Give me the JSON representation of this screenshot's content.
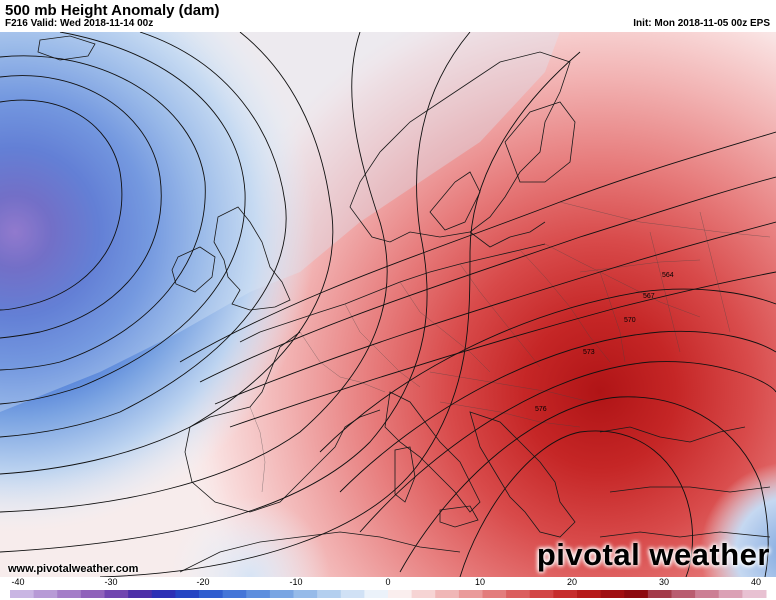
{
  "header": {
    "title": "500 mb Height Anomaly (dam)",
    "valid": "F216 Valid: Wed 2018-11-14 00z",
    "init": "Init: Mon 2018-11-05 00z EPS"
  },
  "footer": {
    "website": "www.pivotalweather.com",
    "brand": "pivotal weather"
  },
  "colorbar": {
    "ticks": [
      "-40",
      "-30",
      "-20",
      "-10",
      "0",
      "10",
      "20",
      "30",
      "40"
    ],
    "min": -40,
    "max": 40,
    "colors": [
      "#c9b5e3",
      "#b79ad6",
      "#a47dc8",
      "#8f62bb",
      "#7045b0",
      "#4c2fa8",
      "#2c30b5",
      "#2545c3",
      "#2f5ecf",
      "#4476d8",
      "#5d8ede",
      "#79a5e3",
      "#96bbe9",
      "#b3cfef",
      "#d0e1f5",
      "#ebf2fa",
      "#faeeee",
      "#f6d4d4",
      "#f0b7b7",
      "#ea9a9a",
      "#e37c7c",
      "#db5f5f",
      "#d24545",
      "#c62c2c",
      "#b51a1a",
      "#a00f12",
      "#8c0a10",
      "#a33a49",
      "#b95c70",
      "#cc7f95",
      "#dba1b5",
      "#e8c1d2"
    ]
  },
  "contours": {
    "labels": [
      {
        "text": "564"
      },
      {
        "text": "567"
      },
      {
        "text": "570"
      },
      {
        "text": "573"
      },
      {
        "text": "576"
      }
    ]
  }
}
